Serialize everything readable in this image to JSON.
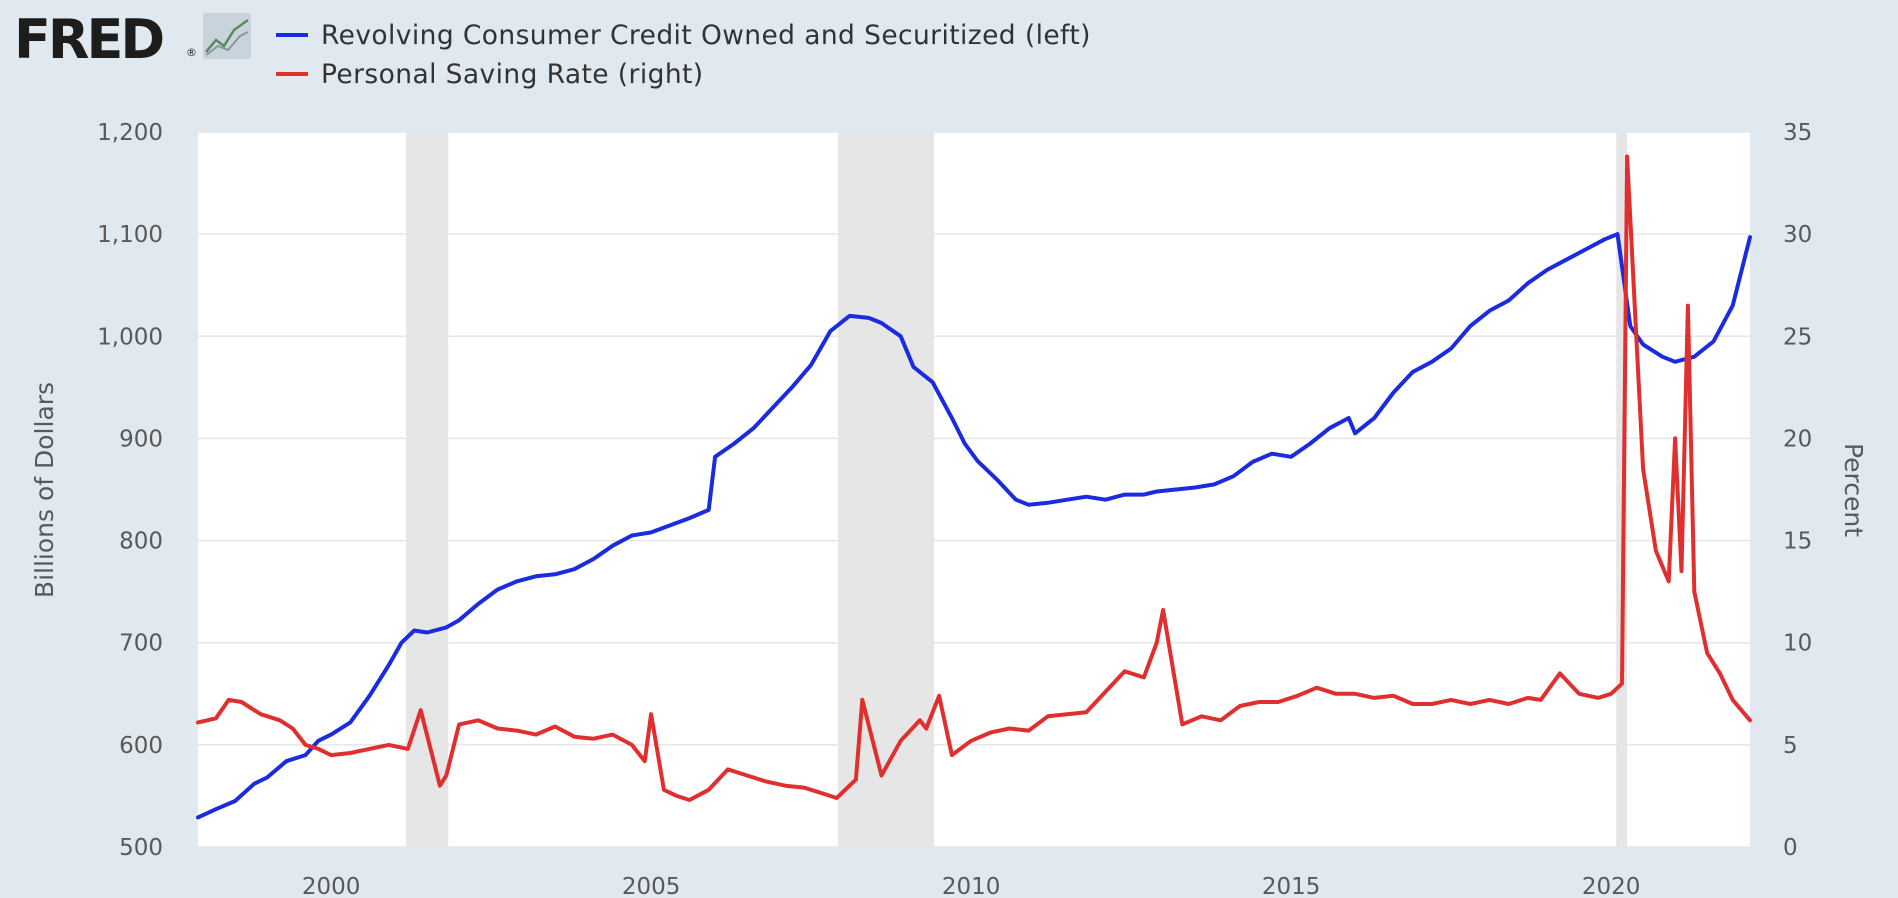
{
  "header": {
    "logo_text": "FRED",
    "logo_mark": "®",
    "logo_icon": "trend-line-chart-icon"
  },
  "chart_data": {
    "type": "line",
    "title": "",
    "legend_position": "top-left",
    "grid": true,
    "x_axis": {
      "range": [
        1997.92,
        2022.17
      ],
      "ticks": [
        2000,
        2005,
        2010,
        2015,
        2020
      ],
      "tick_labels": [
        "2000",
        "2005",
        "2010",
        "2015",
        "2020"
      ]
    },
    "y_left": {
      "label": "Billions of Dollars",
      "range": [
        500,
        1200
      ],
      "ticks": [
        500,
        600,
        700,
        800,
        900,
        1000,
        1100,
        1200
      ],
      "tick_labels": [
        "500",
        "600",
        "700",
        "800",
        "900",
        "1,000",
        "1,100",
        "1,200"
      ]
    },
    "y_right": {
      "label": "Percent",
      "range": [
        0,
        35
      ],
      "ticks": [
        0,
        5,
        10,
        15,
        20,
        25,
        30,
        35
      ],
      "tick_labels": [
        "0",
        "5",
        "10",
        "15",
        "20",
        "25",
        "30",
        "35"
      ]
    },
    "recessions": [
      [
        2001.17,
        2001.83
      ],
      [
        2007.92,
        2009.42
      ],
      [
        2020.08,
        2020.25
      ]
    ],
    "colors": {
      "recession": "#e6e6e6",
      "grid": "#e6e6e6",
      "plot_bg": "#ffffff",
      "page_bg": "#e1e9f0"
    },
    "series": [
      {
        "name": "Revolving Consumer Credit Owned and Securitized (left)",
        "axis": "left",
        "color": "#1a2be0",
        "x": [
          1997.92,
          1998.2,
          1998.5,
          1998.8,
          1999.0,
          1999.3,
          1999.6,
          1999.8,
          2000.0,
          2000.3,
          2000.6,
          2000.9,
          2001.1,
          2001.3,
          2001.5,
          2001.8,
          2002.0,
          2002.3,
          2002.6,
          2002.9,
          2003.2,
          2003.5,
          2003.8,
          2004.1,
          2004.4,
          2004.7,
          2005.0,
          2005.3,
          2005.6,
          2005.9,
          2006.0,
          2006.3,
          2006.6,
          2006.9,
          2007.2,
          2007.5,
          2007.8,
          2008.1,
          2008.4,
          2008.6,
          2008.9,
          2009.1,
          2009.4,
          2009.7,
          2009.9,
          2010.1,
          2010.4,
          2010.7,
          2010.9,
          2011.2,
          2011.5,
          2011.8,
          2012.1,
          2012.4,
          2012.7,
          2012.9,
          2013.2,
          2013.5,
          2013.8,
          2014.1,
          2014.4,
          2014.7,
          2015.0,
          2015.3,
          2015.6,
          2015.9,
          2016.0,
          2016.3,
          2016.6,
          2016.9,
          2017.2,
          2017.5,
          2017.8,
          2018.1,
          2018.4,
          2018.7,
          2019.0,
          2019.3,
          2019.6,
          2019.9,
          2020.1,
          2020.3,
          2020.5,
          2020.8,
          2021.0,
          2021.3,
          2021.6,
          2021.9,
          2022.17
        ],
        "values": [
          529,
          537,
          545,
          562,
          568,
          584,
          590,
          604,
          610,
          622,
          648,
          678,
          700,
          712,
          710,
          715,
          722,
          738,
          752,
          760,
          765,
          767,
          772,
          782,
          795,
          805,
          808,
          815,
          822,
          830,
          882,
          895,
          910,
          930,
          950,
          972,
          1005,
          1020,
          1018,
          1013,
          1000,
          970,
          955,
          920,
          895,
          878,
          860,
          840,
          835,
          837,
          840,
          843,
          840,
          845,
          845,
          848,
          850,
          852,
          855,
          863,
          877,
          885,
          882,
          895,
          910,
          920,
          905,
          920,
          945,
          965,
          975,
          988,
          1010,
          1025,
          1035,
          1052,
          1065,
          1075,
          1085,
          1095,
          1100,
          1010,
          992,
          980,
          975,
          980,
          995,
          1030,
          1097
        ]
      },
      {
        "name": "Personal Saving Rate (right)",
        "axis": "right",
        "color": "#e02f2f",
        "x": [
          1997.92,
          1998.2,
          1998.4,
          1998.6,
          1998.9,
          1999.2,
          1999.4,
          1999.6,
          1999.8,
          2000.0,
          2000.3,
          2000.6,
          2000.9,
          2001.2,
          2001.4,
          2001.7,
          2001.8,
          2002.0,
          2002.3,
          2002.6,
          2002.9,
          2003.2,
          2003.5,
          2003.8,
          2004.1,
          2004.4,
          2004.7,
          2004.9,
          2005.0,
          2005.2,
          2005.4,
          2005.6,
          2005.9,
          2006.2,
          2006.5,
          2006.8,
          2007.1,
          2007.4,
          2007.7,
          2007.9,
          2008.2,
          2008.3,
          2008.6,
          2008.9,
          2009.2,
          2009.3,
          2009.5,
          2009.7,
          2010.0,
          2010.3,
          2010.6,
          2010.9,
          2011.2,
          2011.5,
          2011.8,
          2012.1,
          2012.4,
          2012.7,
          2012.9,
          2013.0,
          2013.3,
          2013.6,
          2013.9,
          2014.2,
          2014.5,
          2014.8,
          2015.1,
          2015.4,
          2015.7,
          2016.0,
          2016.3,
          2016.6,
          2016.9,
          2017.2,
          2017.5,
          2017.8,
          2018.1,
          2018.4,
          2018.7,
          2018.9,
          2019.2,
          2019.5,
          2019.8,
          2020.0,
          2020.17,
          2020.25,
          2020.5,
          2020.7,
          2020.9,
          2021.0,
          2021.1,
          2021.2,
          2021.3,
          2021.5,
          2021.7,
          2021.9,
          2022.17
        ],
        "values": [
          6.1,
          6.3,
          7.2,
          7.1,
          6.5,
          6.2,
          5.8,
          5.0,
          4.8,
          4.5,
          4.6,
          4.8,
          5.0,
          4.8,
          6.7,
          3.0,
          3.5,
          6.0,
          6.2,
          5.8,
          5.7,
          5.5,
          5.9,
          5.4,
          5.3,
          5.5,
          5.0,
          4.2,
          6.5,
          2.8,
          2.5,
          2.3,
          2.8,
          3.8,
          3.5,
          3.2,
          3.0,
          2.9,
          2.6,
          2.4,
          3.3,
          7.2,
          3.5,
          5.2,
          6.2,
          5.8,
          7.4,
          4.5,
          5.2,
          5.6,
          5.8,
          5.7,
          6.4,
          6.5,
          6.6,
          7.6,
          8.6,
          8.3,
          10.0,
          11.6,
          6.0,
          6.4,
          6.2,
          6.9,
          7.1,
          7.1,
          7.4,
          7.8,
          7.5,
          7.5,
          7.3,
          7.4,
          7.0,
          7.0,
          7.2,
          7.0,
          7.2,
          7.0,
          7.3,
          7.2,
          8.5,
          7.5,
          7.3,
          7.5,
          8.0,
          33.8,
          18.5,
          14.5,
          13.0,
          20.0,
          13.5,
          26.5,
          12.5,
          9.5,
          8.5,
          7.2,
          6.2
        ]
      }
    ]
  }
}
